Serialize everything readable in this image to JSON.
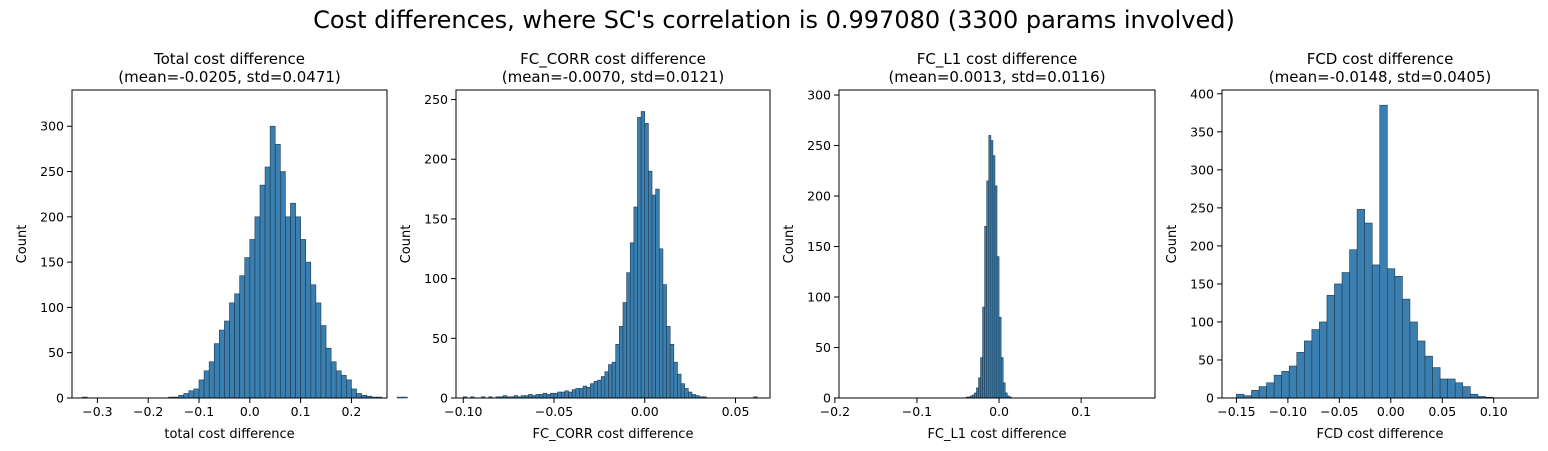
{
  "figure": {
    "title": "Cost differences, where SC's correlation is 0.997080 (3300 params involved)",
    "bar_color": "#3a7fb0",
    "edge_color": "#1f3a4f"
  },
  "chart_data": [
    {
      "type": "bar",
      "title": "Total cost difference",
      "subtitle": "(mean=-0.0205, std=0.0471)",
      "xlabel": "total cost difference",
      "ylabel": "Count",
      "xlim": [
        -0.35,
        0.27
      ],
      "ylim": [
        0,
        340
      ],
      "xticks": [
        -0.3,
        -0.2,
        -0.1,
        0.0,
        0.1,
        0.2
      ],
      "xticklabels": [
        "−0.3",
        "−0.2",
        "−0.1",
        "0.0",
        "0.1",
        "0.2"
      ],
      "yticks": [
        0,
        50,
        100,
        150,
        200,
        250,
        300
      ],
      "bin_start": -0.33,
      "bin_width": 0.01,
      "counts": [
        1,
        0,
        0,
        0,
        0,
        0,
        0,
        0,
        0,
        0,
        0,
        0,
        0,
        0,
        0,
        0,
        0,
        1,
        1,
        3,
        5,
        8,
        10,
        20,
        30,
        40,
        60,
        75,
        85,
        105,
        115,
        135,
        155,
        175,
        200,
        235,
        255,
        300,
        280,
        250,
        200,
        215,
        200,
        175,
        150,
        125,
        105,
        80,
        55,
        40,
        30,
        25,
        20,
        10,
        5,
        3,
        2,
        1,
        1,
        0,
        0,
        0,
        1,
        1
      ]
    },
    {
      "type": "bar",
      "title": "FC_CORR cost difference",
      "subtitle": "(mean=-0.0070, std=0.0121)",
      "xlabel": "FC_CORR cost difference",
      "ylabel": "Count",
      "xlim": [
        -0.104,
        0.069
      ],
      "ylim": [
        0,
        258
      ],
      "xticks": [
        -0.1,
        -0.05,
        0.0,
        0.05
      ],
      "xticklabels": [
        "−0.10",
        "−0.05",
        "0.00",
        "0.05"
      ],
      "yticks": [
        0,
        50,
        100,
        150,
        200,
        250
      ],
      "bin_start": -0.1,
      "bin_width": 0.002,
      "counts": [
        1,
        0,
        1,
        0,
        0,
        1,
        0,
        1,
        0,
        1,
        1,
        2,
        1,
        1,
        2,
        1,
        2,
        2,
        3,
        2,
        3,
        3,
        4,
        3,
        4,
        4,
        5,
        5,
        6,
        5,
        7,
        8,
        8,
        10,
        9,
        12,
        14,
        15,
        18,
        22,
        28,
        30,
        45,
        60,
        80,
        105,
        130,
        160,
        235,
        240,
        230,
        190,
        170,
        175,
        125,
        95,
        60,
        45,
        30,
        20,
        12,
        8,
        5,
        3,
        2,
        1,
        1,
        0,
        0,
        0,
        0,
        0,
        0,
        0,
        0,
        0,
        0,
        0,
        0,
        0,
        1
      ]
    },
    {
      "type": "bar",
      "title": "FC_L1 cost difference",
      "subtitle": "(mean=0.0013, std=0.0116)",
      "xlabel": "FC_L1 cost difference",
      "ylabel": "Count",
      "xlim": [
        -0.195,
        0.19
      ],
      "ylim": [
        0,
        305
      ],
      "xticks": [
        -0.2,
        -0.1,
        0.0,
        0.1
      ],
      "xticklabels": [
        "−0.2",
        "−0.1",
        "0.0",
        "0.1"
      ],
      "yticks": [
        0,
        50,
        100,
        150,
        200,
        250,
        300
      ],
      "bin_start": -0.04,
      "bin_width": 0.0025,
      "counts": [
        1,
        1,
        2,
        3,
        5,
        10,
        20,
        40,
        90,
        170,
        215,
        260,
        255,
        240,
        210,
        140,
        80,
        40,
        15,
        5,
        2,
        1
      ]
    },
    {
      "type": "bar",
      "title": "FCD cost difference",
      "subtitle": "(mean=-0.0148, std=0.0405)",
      "xlabel": "FCD cost difference",
      "ylabel": "Count",
      "xlim": [
        -0.164,
        0.143
      ],
      "ylim": [
        0,
        405
      ],
      "xticks": [
        -0.15,
        -0.1,
        -0.05,
        0.0,
        0.05,
        0.1
      ],
      "xticklabels": [
        "−0.15",
        "−0.10",
        "−0.05",
        "0.00",
        "0.05",
        "0.10"
      ],
      "yticks": [
        0,
        50,
        100,
        150,
        200,
        250,
        300,
        350,
        400
      ],
      "bin_start": -0.15,
      "bin_width": 0.00733,
      "counts": [
        5,
        3,
        10,
        15,
        20,
        30,
        35,
        42,
        60,
        75,
        90,
        100,
        135,
        150,
        165,
        195,
        248,
        230,
        175,
        385,
        170,
        160,
        130,
        100,
        75,
        55,
        40,
        25,
        25,
        20,
        15,
        5,
        2,
        1
      ]
    }
  ]
}
